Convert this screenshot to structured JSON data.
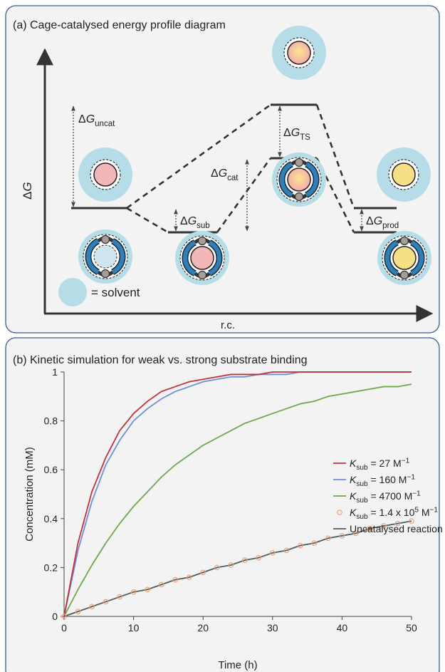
{
  "panel_a": {
    "title": "(a) Cage-catalysed energy profile diagram",
    "y_label": [
      {
        "text": "Δ",
        "style": "normal"
      },
      {
        "text": "G",
        "style": "italic"
      }
    ],
    "x_label": "r.c.",
    "legend_text": "= solvent",
    "labels": {
      "uncat": [
        {
          "text": "Δ",
          "style": "normal"
        },
        {
          "text": "G",
          "style": "italic"
        },
        {
          "text": "uncat",
          "style": "sub"
        }
      ],
      "sub": [
        {
          "text": "Δ",
          "style": "normal"
        },
        {
          "text": "G",
          "style": "italic"
        },
        {
          "text": "sub",
          "style": "sub"
        }
      ],
      "cat": [
        {
          "text": "Δ",
          "style": "normal"
        },
        {
          "text": "G",
          "style": "italic"
        },
        {
          "text": "cat",
          "style": "sub"
        }
      ],
      "ts": [
        {
          "text": "Δ",
          "style": "normal"
        },
        {
          "text": "G",
          "style": "italic"
        },
        {
          "text": "TS",
          "style": "sub"
        }
      ],
      "prod": [
        {
          "text": "Δ",
          "style": "normal"
        },
        {
          "text": "G",
          "style": "italic"
        },
        {
          "text": "prod",
          "style": "sub"
        }
      ]
    }
  },
  "chart_data": {
    "type": "line",
    "title": "(b) Kinetic simulation for weak vs. strong substrate binding",
    "x_label": "Time (h)",
    "y_label": "Concentration (mM)",
    "x": [
      0,
      2,
      4,
      6,
      8,
      10,
      12,
      14,
      16,
      18,
      20,
      22,
      24,
      26,
      28,
      30,
      32,
      34,
      36,
      38,
      40,
      42,
      44,
      46,
      48,
      50
    ],
    "xlim": [
      0,
      50
    ],
    "xticks": [
      0,
      10,
      20,
      30,
      40,
      50
    ],
    "ylim": [
      0,
      1
    ],
    "yticks": [
      0,
      0.2,
      0.4,
      0.6,
      0.8,
      1
    ],
    "grid": false,
    "series": [
      {
        "name": [
          {
            "text": "K",
            "style": "italic"
          },
          {
            "text": "sub",
            "style": "sub"
          },
          {
            "text": " = 27 M",
            "style": "normal"
          },
          {
            "text": "−1",
            "style": "sup"
          }
        ],
        "color": "#c3323b",
        "style": "line",
        "values": [
          0,
          0.3,
          0.51,
          0.65,
          0.76,
          0.83,
          0.88,
          0.92,
          0.94,
          0.96,
          0.97,
          0.98,
          0.99,
          0.99,
          0.99,
          1.0,
          1,
          1,
          1,
          1,
          1,
          1,
          1,
          1,
          1,
          1
        ]
      },
      {
        "name": [
          {
            "text": "K",
            "style": "italic"
          },
          {
            "text": "sub",
            "style": "sub"
          },
          {
            "text": " = 160 M",
            "style": "normal"
          },
          {
            "text": "−1",
            "style": "sup"
          }
        ],
        "color": "#6f8fd8",
        "style": "line",
        "values": [
          0,
          0.27,
          0.47,
          0.62,
          0.72,
          0.8,
          0.85,
          0.89,
          0.92,
          0.94,
          0.96,
          0.97,
          0.98,
          0.98,
          0.99,
          0.99,
          0.99,
          1.0,
          1,
          1,
          1,
          1,
          1,
          1,
          1,
          1
        ]
      },
      {
        "name": [
          {
            "text": "K",
            "style": "italic"
          },
          {
            "text": "sub",
            "style": "sub"
          },
          {
            "text": " = 4700 M",
            "style": "normal"
          },
          {
            "text": "−1",
            "style": "sup"
          }
        ],
        "color": "#6fa84c",
        "style": "line",
        "values": [
          0,
          0.11,
          0.21,
          0.3,
          0.38,
          0.45,
          0.51,
          0.57,
          0.62,
          0.66,
          0.7,
          0.73,
          0.76,
          0.79,
          0.81,
          0.83,
          0.85,
          0.87,
          0.88,
          0.9,
          0.91,
          0.92,
          0.93,
          0.94,
          0.94,
          0.95
        ]
      },
      {
        "name": [
          {
            "text": "K",
            "style": "italic"
          },
          {
            "text": "sub",
            "style": "sub"
          },
          {
            "text": " = 1.4 x 10",
            "style": "normal"
          },
          {
            "text": "5",
            "style": "sup"
          },
          {
            "text": " M",
            "style": "normal"
          },
          {
            "text": "−1",
            "style": "sup"
          }
        ],
        "color": "#e8a27a",
        "style": "markers",
        "values": [
          0,
          0.02,
          0.04,
          0.06,
          0.08,
          0.1,
          0.11,
          0.13,
          0.15,
          0.16,
          0.18,
          0.2,
          0.21,
          0.23,
          0.24,
          0.26,
          0.27,
          0.29,
          0.3,
          0.32,
          0.33,
          0.34,
          0.36,
          0.37,
          0.38,
          0.39
        ]
      },
      {
        "name": [
          {
            "text": "Uncatalysed reaction",
            "style": "normal"
          }
        ],
        "color": "#4f5d5d",
        "style": "line",
        "values": [
          0,
          0.02,
          0.04,
          0.06,
          0.08,
          0.1,
          0.11,
          0.13,
          0.15,
          0.16,
          0.18,
          0.2,
          0.21,
          0.23,
          0.24,
          0.26,
          0.27,
          0.29,
          0.3,
          0.32,
          0.33,
          0.34,
          0.36,
          0.37,
          0.38,
          0.39
        ]
      }
    ]
  }
}
